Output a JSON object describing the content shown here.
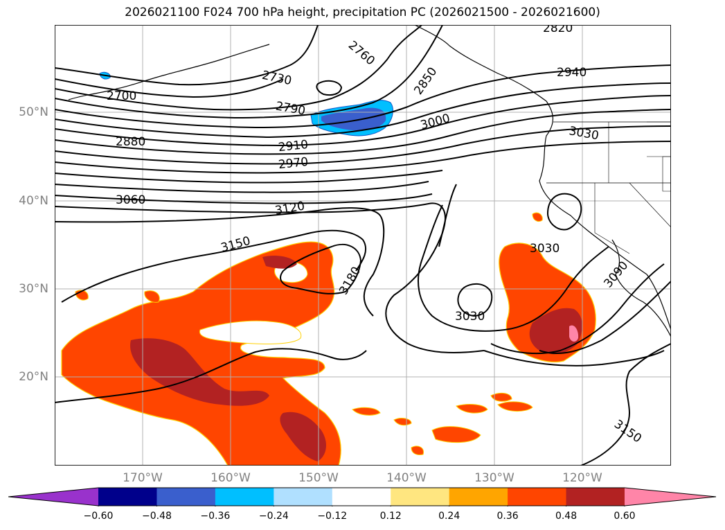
{
  "title": "2026021100 F024 700 hPa height, precipitation PC (2026021500 - 2026021600)",
  "lat_labels": [
    "50°N",
    "40°N",
    "30°N",
    "20°N"
  ],
  "lon_labels": [
    "170°W",
    "160°W",
    "150°W",
    "140°W",
    "130°W",
    "120°W"
  ],
  "colorbar": {
    "ticks": [
      "−0.60",
      "−0.48",
      "−0.36",
      "−0.24",
      "−0.12",
      "0.12",
      "0.24",
      "0.36",
      "0.48",
      "0.60"
    ],
    "colors": [
      "#9932cc",
      "#00008b",
      "#3a5fcd",
      "#00bfff",
      "#b0e0ff",
      "#ffffff",
      "#ffe680",
      "#ffa500",
      "#ff4500",
      "#b22222",
      "#ff85a8"
    ]
  },
  "contour_labels": [
    "2820",
    "2760",
    "2700",
    "2730",
    "2850",
    "2940",
    "2790",
    "3000",
    "3030",
    "2880",
    "2910",
    "2970",
    "3060",
    "3120",
    "3150",
    "3180",
    "3030",
    "3030",
    "3090",
    "3150"
  ]
}
